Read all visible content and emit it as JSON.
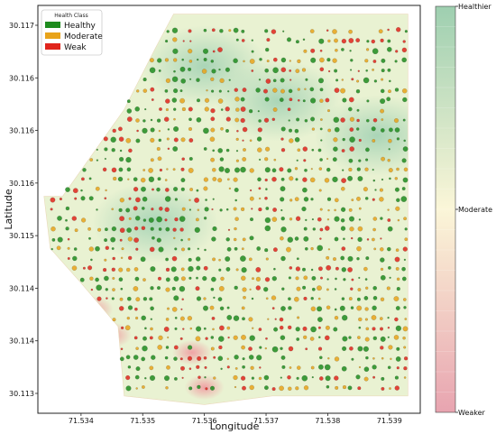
{
  "chart_data": {
    "type": "scatter",
    "title": "",
    "xlabel": "Longitude",
    "ylabel": "Latitude",
    "xlim": [
      71.5333,
      71.5395
    ],
    "ylim": [
      30.1128,
      30.1175
    ],
    "x_ticks": [
      "71.534",
      "71.535",
      "71.536",
      "71.537",
      "71.538",
      "71.539"
    ],
    "y_ticks": [
      "30.117",
      "30.116",
      "30.116",
      "30.116",
      "30.115",
      "30.114",
      "30.114",
      "30.113"
    ],
    "grid": false,
    "background": "interpolated health-index surface (green = healthier, red = weaker)",
    "legend": {
      "title": "Health Class",
      "placement": "top-left",
      "entries": [
        {
          "name": "Healthy",
          "color": "#1e8c1e"
        },
        {
          "name": "Moderate",
          "color": "#e8a31a"
        },
        {
          "name": "Weak",
          "color": "#e0241b"
        }
      ]
    },
    "colorbar": {
      "labels": [
        "Healthier",
        "Moderate",
        "Weaker"
      ],
      "colors": [
        "#9ecfb0",
        "#fbf6d8",
        "#e8a4b0"
      ]
    },
    "field_boundary": [
      [
        71.5337,
        30.1153
      ],
      [
        71.5347,
        30.1163
      ],
      [
        71.5352,
        30.117
      ],
      [
        71.5355,
        30.1174
      ],
      [
        71.5393,
        30.1174
      ],
      [
        71.5393,
        30.113
      ],
      [
        71.5371,
        30.113
      ],
      [
        71.536,
        30.1129
      ],
      [
        71.5347,
        30.113
      ],
      [
        71.5346,
        30.1138
      ],
      [
        71.534,
        30.1143
      ],
      [
        71.5335,
        30.1147
      ],
      [
        71.5334,
        30.1153
      ]
    ],
    "weak_zones": [
      [
        71.5342,
        30.114
      ],
      [
        71.536,
        30.1131
      ],
      [
        71.5358,
        30.1135
      ],
      [
        71.5345,
        30.1137
      ]
    ],
    "healthy_zones": [
      [
        71.536,
        30.1168
      ],
      [
        71.5372,
        30.1164
      ],
      [
        71.5352,
        30.115
      ],
      [
        71.5388,
        30.116
      ]
    ]
  }
}
